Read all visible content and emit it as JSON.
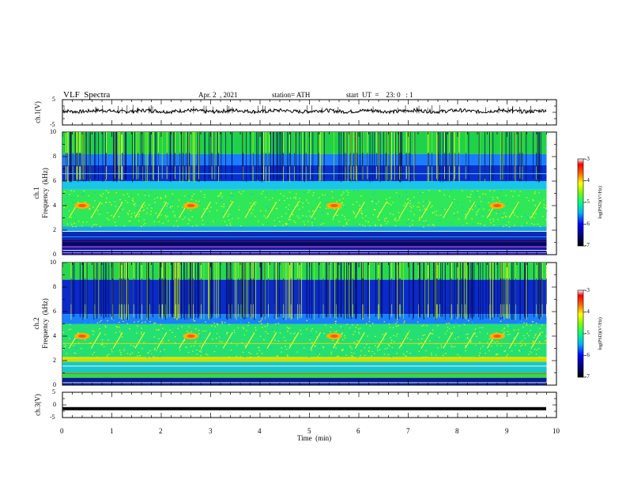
{
  "header": {
    "title": "VLF  Spectra",
    "date": "Apr. 2  , 2021",
    "station": "station= ATH",
    "start": "start  UT  =    23: 0   : 1"
  },
  "chart_data": [
    {
      "type": "line",
      "panel": "ch1-waveform",
      "ylabel": "ch.1(V)",
      "ylim": [
        -5,
        5
      ],
      "yticks": [
        "5",
        "-5"
      ],
      "xlim": [
        0,
        10
      ],
      "trace_level_V": 0.5,
      "trace_span_min": [
        0,
        9.8
      ],
      "color": "#000000"
    },
    {
      "type": "heatmap",
      "panel": "ch1-spectrogram",
      "ylabel": "ch.1\nFrequency  (kHz)",
      "ylim": [
        0,
        10
      ],
      "yticks": [
        "0",
        "2",
        "4",
        "6",
        "8",
        "10"
      ],
      "xlim": [
        0,
        10
      ],
      "data_span_min": [
        0,
        9.8
      ],
      "colorbar_label": "log(PSD)(V²/Hz)",
      "colorbar_range": [
        -7,
        -3
      ],
      "colorbar_ticks": [
        "-3",
        "-4",
        "-5",
        "-6",
        "-7"
      ],
      "bursts_min": [
        0.4,
        2.6,
        5.5,
        8.8
      ],
      "burst_freq_kHz": 4
    },
    {
      "type": "heatmap",
      "panel": "ch2-spectrogram",
      "ylabel": "ch.2\nFrequency  (kHz)",
      "ylim": [
        0,
        10
      ],
      "yticks": [
        "0",
        "2",
        "4",
        "6",
        "8",
        "10"
      ],
      "xlim": [
        0,
        10
      ],
      "data_span_min": [
        0,
        9.8
      ],
      "colorbar_label": "log(PSD)(V²/Hz)",
      "colorbar_range": [
        -7,
        -3
      ],
      "colorbar_ticks": [
        "-3",
        "-4",
        "-5",
        "-6",
        "-7"
      ],
      "bursts_min": [
        0.4,
        2.6,
        5.5,
        8.8
      ],
      "burst_freq_kHz": 4
    },
    {
      "type": "line",
      "panel": "ch3-waveform",
      "ylabel": "ch.3(V)",
      "ylim": [
        -5,
        5
      ],
      "yticks": [
        "5",
        "0",
        "-5"
      ],
      "xlim": [
        0,
        10
      ],
      "xticks": [
        "0",
        "1",
        "2",
        "3",
        "4",
        "5",
        "6",
        "7",
        "8",
        "9",
        "10"
      ],
      "xlabel": "Time  (min)",
      "trace_level_V": -1.5,
      "trace_span_min": [
        0,
        9.8
      ],
      "color": "#000000"
    }
  ]
}
